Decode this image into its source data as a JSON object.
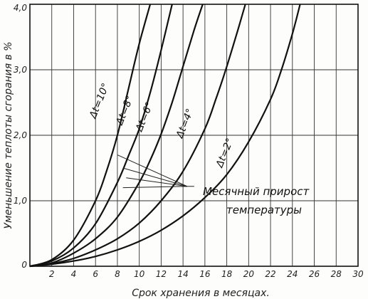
{
  "chart_data": {
    "type": "line",
    "title": "",
    "xlabel": "Срок хранения в месяцах.",
    "ylabel": "Уменьшение теплоты сгорания в %",
    "xlim": [
      0,
      30
    ],
    "ylim": [
      0,
      4.0
    ],
    "x_ticks": [
      2,
      4,
      6,
      8,
      10,
      12,
      14,
      16,
      18,
      20,
      22,
      24,
      26,
      28,
      30
    ],
    "x_tick_labels": [
      "2",
      "4",
      "6",
      "8",
      "10",
      "12",
      "14",
      "16",
      "18",
      "20",
      "22",
      "24",
      "26",
      "28",
      "30"
    ],
    "y_ticks": [
      0,
      1.0,
      2.0,
      3.0,
      4.0
    ],
    "y_tick_labels": [
      "0",
      "1,0",
      "2,0",
      "3,0",
      "4,0"
    ],
    "grid": true,
    "series": [
      {
        "name": "Δt=10°",
        "x": [
          0,
          2,
          4,
          6,
          7,
          8,
          9,
          10,
          11
        ],
        "y": [
          0,
          0.1,
          0.4,
          1.0,
          1.45,
          2.0,
          2.7,
          3.4,
          4.0
        ]
      },
      {
        "name": "Δt=8°",
        "x": [
          0,
          2,
          4,
          6,
          8,
          9,
          10,
          11,
          12,
          13
        ],
        "y": [
          0,
          0.08,
          0.28,
          0.65,
          1.28,
          1.68,
          2.1,
          2.65,
          3.3,
          4.0
        ]
      },
      {
        "name": "Δt=6°",
        "x": [
          0,
          2,
          4,
          6,
          8,
          10,
          11,
          12,
          13,
          14,
          15,
          15.8
        ],
        "y": [
          0,
          0.05,
          0.2,
          0.42,
          0.75,
          1.28,
          1.62,
          2.02,
          2.5,
          3.05,
          3.6,
          4.0
        ]
      },
      {
        "name": "Δt=4°",
        "x": [
          0,
          2,
          4,
          6,
          8,
          10,
          12,
          14,
          16,
          17,
          18,
          19,
          19.7
        ],
        "y": [
          0,
          0.04,
          0.12,
          0.25,
          0.42,
          0.66,
          1.0,
          1.45,
          2.1,
          2.55,
          3.05,
          3.6,
          4.0
        ]
      },
      {
        "name": "Δt=2°",
        "x": [
          0,
          2,
          4,
          6,
          8,
          10,
          12,
          14,
          16,
          18,
          20,
          22,
          23,
          24,
          24.7
        ],
        "y": [
          0,
          0.03,
          0.08,
          0.15,
          0.25,
          0.38,
          0.55,
          0.77,
          1.05,
          1.4,
          1.9,
          2.55,
          3.0,
          3.55,
          4.0
        ]
      }
    ],
    "annotation": {
      "lines": [
        "Месячный прирост",
        "температуры"
      ],
      "target": {
        "x": 14.5,
        "y": 1.22
      },
      "sources": [
        {
          "x": 8.0,
          "y": 1.7
        },
        {
          "x": 8.5,
          "y": 1.5
        },
        {
          "x": 8.8,
          "y": 1.35
        },
        {
          "x": 8.5,
          "y": 1.2
        },
        {
          "x": 14.5,
          "y": 1.22
        }
      ]
    }
  }
}
